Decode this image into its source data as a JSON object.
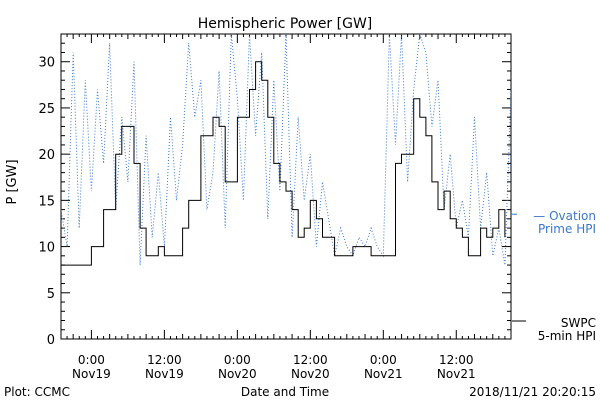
{
  "chart_data": {
    "type": "line",
    "title": "Hemispheric Power [GW]",
    "ylabel": "P [GW]",
    "xlabel": "Date and Time",
    "ylim": [
      0,
      33
    ],
    "yticks": [
      0,
      5,
      10,
      15,
      20,
      25,
      30
    ],
    "xlim": [
      "2018-11-18T19:00",
      "2018-11-21T21:00"
    ],
    "xticks": [
      {
        "t": "2018-11-19T00:00",
        "line1": "0:00",
        "line2": "Nov19"
      },
      {
        "t": "2018-11-19T12:00",
        "line1": "12:00",
        "line2": "Nov19"
      },
      {
        "t": "2018-11-20T00:00",
        "line1": "0:00",
        "line2": "Nov20"
      },
      {
        "t": "2018-11-20T12:00",
        "line1": "12:00",
        "line2": "Nov20"
      },
      {
        "t": "2018-11-21T00:00",
        "line1": "0:00",
        "line2": "Nov21"
      },
      {
        "t": "2018-11-21T12:00",
        "line1": "12:00",
        "line2": "Nov21"
      }
    ],
    "series": [
      {
        "name": "SWPC 5-min HPI",
        "color": "#000000",
        "style": "solid",
        "x": [
          "2018-11-18T19:00",
          "2018-11-18T22:00",
          "2018-11-19T00:00",
          "2018-11-19T02:00",
          "2018-11-19T04:00",
          "2018-11-19T05:00",
          "2018-11-19T06:00",
          "2018-11-19T07:00",
          "2018-11-19T08:00",
          "2018-11-19T09:00",
          "2018-11-19T10:00",
          "2018-11-19T11:00",
          "2018-11-19T12:00",
          "2018-11-19T14:00",
          "2018-11-19T15:00",
          "2018-11-19T16:00",
          "2018-11-19T18:00",
          "2018-11-19T20:00",
          "2018-11-19T21:00",
          "2018-11-19T22:00",
          "2018-11-20T00:00",
          "2018-11-20T02:00",
          "2018-11-20T03:00",
          "2018-11-20T04:00",
          "2018-11-20T05:00",
          "2018-11-20T06:00",
          "2018-11-20T07:00",
          "2018-11-20T08:00",
          "2018-11-20T09:00",
          "2018-11-20T10:00",
          "2018-11-20T11:00",
          "2018-11-20T12:00",
          "2018-11-20T13:00",
          "2018-11-20T14:00",
          "2018-11-20T16:00",
          "2018-11-20T18:00",
          "2018-11-20T19:00",
          "2018-11-20T20:00",
          "2018-11-20T22:00",
          "2018-11-21T00:00",
          "2018-11-21T01:00",
          "2018-11-21T02:00",
          "2018-11-21T03:00",
          "2018-11-21T05:00",
          "2018-11-21T06:00",
          "2018-11-21T07:00",
          "2018-11-21T08:00",
          "2018-11-21T09:00",
          "2018-11-21T10:00",
          "2018-11-21T11:00",
          "2018-11-21T12:00",
          "2018-11-21T13:00",
          "2018-11-21T14:00",
          "2018-11-21T15:00",
          "2018-11-21T16:00",
          "2018-11-21T17:00",
          "2018-11-21T18:00",
          "2018-11-21T19:00",
          "2018-11-21T20:00"
        ],
        "y": [
          8,
          8,
          10,
          14,
          20,
          23,
          23,
          19,
          12,
          9,
          9,
          10,
          9,
          9,
          12,
          15,
          22,
          24,
          23,
          17,
          24,
          27,
          30,
          28,
          24,
          19,
          17,
          16,
          14,
          11,
          12,
          15,
          13,
          11,
          9,
          9,
          10,
          10,
          9,
          9,
          9,
          19,
          20,
          26,
          24,
          22,
          17,
          14,
          16,
          13,
          12,
          11,
          9,
          9,
          12,
          11,
          12,
          14,
          11
        ]
      },
      {
        "name": "Ovation Prime HPI",
        "color": "#3a78c9",
        "style": "dotted",
        "x": [
          "2018-11-18T19:00",
          "2018-11-18T20:00",
          "2018-11-18T21:00",
          "2018-11-18T22:00",
          "2018-11-18T23:00",
          "2018-11-19T00:00",
          "2018-11-19T01:00",
          "2018-11-19T02:00",
          "2018-11-19T03:00",
          "2018-11-19T04:00",
          "2018-11-19T05:00",
          "2018-11-19T06:00",
          "2018-11-19T07:00",
          "2018-11-19T08:00",
          "2018-11-19T09:00",
          "2018-11-19T10:00",
          "2018-11-19T11:00",
          "2018-11-19T12:00",
          "2018-11-19T13:00",
          "2018-11-19T14:00",
          "2018-11-19T15:00",
          "2018-11-19T16:00",
          "2018-11-19T17:00",
          "2018-11-19T18:00",
          "2018-11-19T19:00",
          "2018-11-19T20:00",
          "2018-11-19T21:00",
          "2018-11-19T22:00",
          "2018-11-19T23:00",
          "2018-11-20T00:00",
          "2018-11-20T01:00",
          "2018-11-20T02:00",
          "2018-11-20T03:00",
          "2018-11-20T04:00",
          "2018-11-20T05:00",
          "2018-11-20T06:00",
          "2018-11-20T07:00",
          "2018-11-20T08:00",
          "2018-11-20T09:00",
          "2018-11-20T10:00",
          "2018-11-20T11:00",
          "2018-11-20T12:00",
          "2018-11-20T13:00",
          "2018-11-20T14:00",
          "2018-11-20T15:00",
          "2018-11-20T16:00",
          "2018-11-20T17:00",
          "2018-11-20T18:00",
          "2018-11-20T19:00",
          "2018-11-20T20:00",
          "2018-11-20T21:00",
          "2018-11-20T22:00",
          "2018-11-20T23:00",
          "2018-11-21T00:00",
          "2018-11-21T01:00",
          "2018-11-21T02:00",
          "2018-11-21T03:00",
          "2018-11-21T04:00",
          "2018-11-21T05:00",
          "2018-11-21T06:00",
          "2018-11-21T07:00",
          "2018-11-21T08:00",
          "2018-11-21T09:00",
          "2018-11-21T10:00",
          "2018-11-21T11:00",
          "2018-11-21T12:00",
          "2018-11-21T13:00",
          "2018-11-21T14:00",
          "2018-11-21T15:00",
          "2018-11-21T16:00",
          "2018-11-21T17:00",
          "2018-11-21T18:00",
          "2018-11-21T19:00",
          "2018-11-21T20:00",
          "2018-11-21T21:00"
        ],
        "y": [
          14,
          10,
          31,
          12,
          28,
          16,
          27,
          19,
          32,
          14,
          24,
          17,
          30,
          8,
          22,
          11,
          18,
          10,
          24,
          15,
          21,
          32,
          24,
          28,
          14,
          18,
          29,
          12,
          33,
          26,
          15,
          33,
          22,
          31,
          13,
          28,
          16,
          33,
          11,
          24,
          15,
          20,
          10,
          17,
          13,
          9,
          12,
          10,
          9,
          11,
          10,
          12,
          10,
          9,
          33,
          21,
          33,
          17,
          27,
          33,
          31,
          23,
          28,
          14,
          20,
          12,
          15,
          11,
          24,
          12,
          18,
          9,
          12,
          8,
          27
        ]
      }
    ],
    "legend": [
      {
        "series": "Ovation Prime HPI",
        "line1": "— Ovation",
        "line2": "Prime HPI"
      },
      {
        "series": "SWPC 5-min HPI",
        "line1": "SWPC",
        "line2": "5-min HPI"
      }
    ]
  },
  "footer": {
    "plot_source": "Plot: CCMC",
    "timestamp": "2018/11/21 20:20:15"
  }
}
